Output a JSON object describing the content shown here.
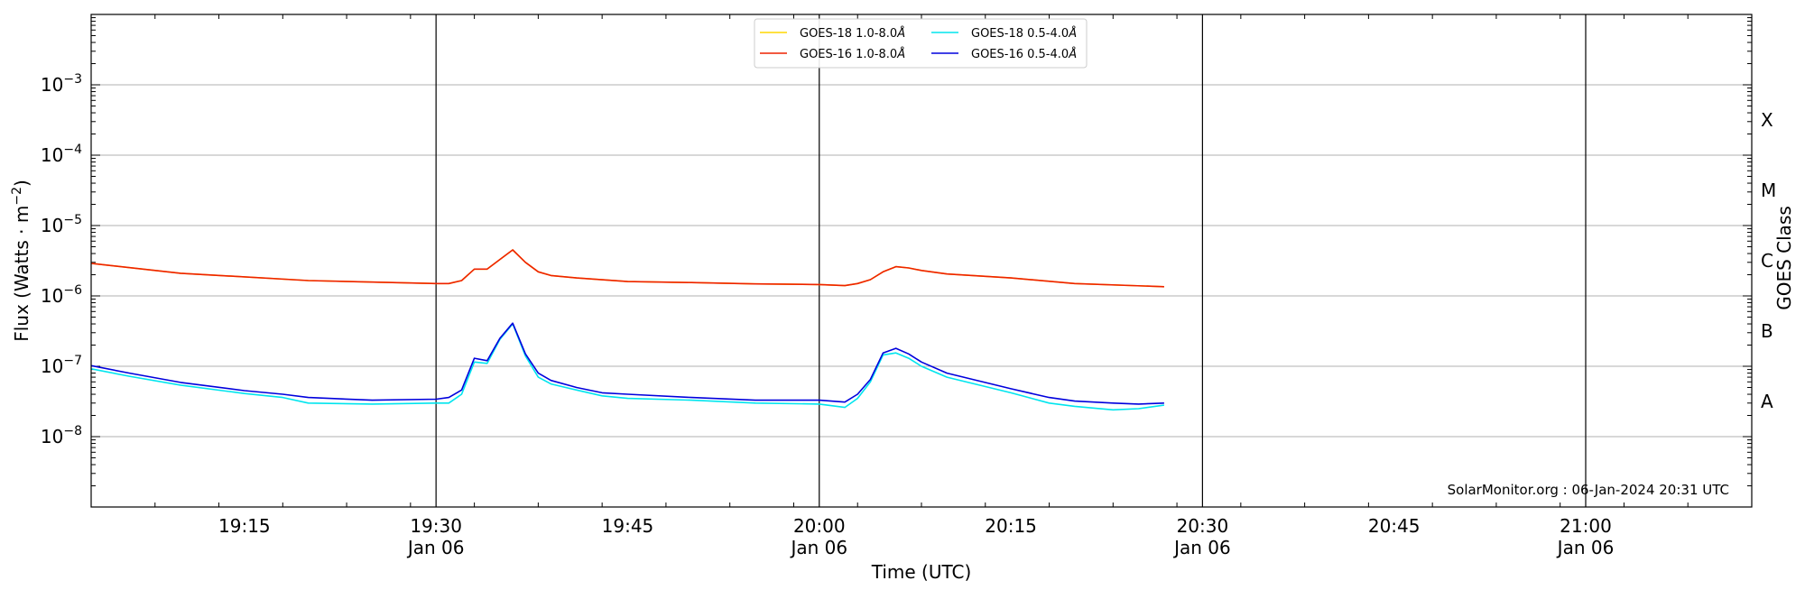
{
  "chart_data": {
    "type": "line",
    "title": "",
    "xlabel": "Time (UTC)",
    "ylabel": "Flux (Watts · m",
    "ylabel_sup": "−2",
    "ylabel_close": ")",
    "right_label": "GOES Class",
    "y_scale": "log",
    "ylim": [
      1e-09,
      0.01
    ],
    "xlim": [
      "2024-01-06T19:03:00",
      "2024-01-06T21:13:00"
    ],
    "grid": "horizontal",
    "legend_position": "top-center",
    "credit": "SolarMonitor.org : 06-Jan-2024 20:31 UTC",
    "y_ticks": [
      {
        "value": 1e-08,
        "base": "10",
        "exp": "−8"
      },
      {
        "value": 1e-07,
        "base": "10",
        "exp": "−7"
      },
      {
        "value": 1e-06,
        "base": "10",
        "exp": "−6"
      },
      {
        "value": 1e-05,
        "base": "10",
        "exp": "−5"
      },
      {
        "value": 0.0001,
        "base": "10",
        "exp": "−4"
      },
      {
        "value": 0.001,
        "base": "10",
        "exp": "−3"
      }
    ],
    "x_ticks": [
      {
        "t": "2024-01-06T19:15:00",
        "label": "19:15",
        "date": ""
      },
      {
        "t": "2024-01-06T19:30:00",
        "label": "19:30",
        "date": "Jan 06"
      },
      {
        "t": "2024-01-06T19:45:00",
        "label": "19:45",
        "date": ""
      },
      {
        "t": "2024-01-06T20:00:00",
        "label": "20:00",
        "date": "Jan 06"
      },
      {
        "t": "2024-01-06T20:15:00",
        "label": "20:15",
        "date": ""
      },
      {
        "t": "2024-01-06T20:30:00",
        "label": "20:30",
        "date": "Jan 06"
      },
      {
        "t": "2024-01-06T20:45:00",
        "label": "20:45",
        "date": ""
      },
      {
        "t": "2024-01-06T21:00:00",
        "label": "21:00",
        "date": "Jan 06"
      }
    ],
    "vlines": [
      "2024-01-06T19:30:00",
      "2024-01-06T20:00:00",
      "2024-01-06T20:30:00",
      "2024-01-06T21:00:00"
    ],
    "goes_classes": [
      {
        "label": "A",
        "value": 3.16e-08
      },
      {
        "label": "B",
        "value": 3.16e-07
      },
      {
        "label": "C",
        "value": 3.16e-06
      },
      {
        "label": "M",
        "value": 3.16e-05
      },
      {
        "label": "X",
        "value": 0.000316
      }
    ],
    "legend": [
      {
        "name": "GOES-18 1.0-8.0",
        "color": "#ffd700"
      },
      {
        "name": "GOES-18 0.5-4.0",
        "color": "#00e5ee"
      },
      {
        "name": "GOES-16 1.0-8.0",
        "color": "#ee2200"
      },
      {
        "name": "GOES-16 0.5-4.0",
        "color": "#0000dd"
      }
    ],
    "legend_unit": "Å",
    "series": [
      {
        "name": "GOES-18 1.0-8.0",
        "color": "#ffd700",
        "x": [
          "2024-01-06T19:03:00",
          "2024-01-06T19:10:00",
          "2024-01-06T19:20:00",
          "2024-01-06T19:30:00",
          "2024-01-06T19:31:00",
          "2024-01-06T19:32:00",
          "2024-01-06T19:33:00",
          "2024-01-06T19:34:00",
          "2024-01-06T19:35:00",
          "2024-01-06T19:36:00",
          "2024-01-06T19:37:00",
          "2024-01-06T19:38:00",
          "2024-01-06T19:39:00",
          "2024-01-06T19:41:00",
          "2024-01-06T19:45:00",
          "2024-01-06T19:50:00",
          "2024-01-06T19:55:00",
          "2024-01-06T20:00:00",
          "2024-01-06T20:02:00",
          "2024-01-06T20:03:00",
          "2024-01-06T20:04:00",
          "2024-01-06T20:05:00",
          "2024-01-06T20:06:00",
          "2024-01-06T20:07:00",
          "2024-01-06T20:08:00",
          "2024-01-06T20:10:00",
          "2024-01-06T20:15:00",
          "2024-01-06T20:20:00",
          "2024-01-06T20:27:00"
        ],
        "y": [
          2.9e-06,
          2.1e-06,
          1.65e-06,
          1.5e-06,
          1.5e-06,
          1.65e-06,
          2.4e-06,
          2.4e-06,
          3.3e-06,
          4.5e-06,
          3e-06,
          2.2e-06,
          1.95e-06,
          1.8e-06,
          1.6e-06,
          1.55e-06,
          1.48e-06,
          1.45e-06,
          1.4e-06,
          1.5e-06,
          1.7e-06,
          2.2e-06,
          2.6e-06,
          2.5e-06,
          2.3e-06,
          2.05e-06,
          1.8e-06,
          1.5e-06,
          1.35e-06
        ]
      },
      {
        "name": "GOES-16 1.0-8.0",
        "color": "#ee2200",
        "x": [
          "2024-01-06T19:03:00",
          "2024-01-06T19:10:00",
          "2024-01-06T19:20:00",
          "2024-01-06T19:30:00",
          "2024-01-06T19:31:00",
          "2024-01-06T19:32:00",
          "2024-01-06T19:33:00",
          "2024-01-06T19:34:00",
          "2024-01-06T19:35:00",
          "2024-01-06T19:36:00",
          "2024-01-06T19:37:00",
          "2024-01-06T19:38:00",
          "2024-01-06T19:39:00",
          "2024-01-06T19:41:00",
          "2024-01-06T19:45:00",
          "2024-01-06T19:50:00",
          "2024-01-06T19:55:00",
          "2024-01-06T20:00:00",
          "2024-01-06T20:02:00",
          "2024-01-06T20:03:00",
          "2024-01-06T20:04:00",
          "2024-01-06T20:05:00",
          "2024-01-06T20:06:00",
          "2024-01-06T20:07:00",
          "2024-01-06T20:08:00",
          "2024-01-06T20:10:00",
          "2024-01-06T20:15:00",
          "2024-01-06T20:20:00",
          "2024-01-06T20:27:00"
        ],
        "y": [
          2.9e-06,
          2.1e-06,
          1.65e-06,
          1.5e-06,
          1.5e-06,
          1.65e-06,
          2.4e-06,
          2.4e-06,
          3.3e-06,
          4.5e-06,
          3e-06,
          2.2e-06,
          1.95e-06,
          1.8e-06,
          1.6e-06,
          1.55e-06,
          1.48e-06,
          1.45e-06,
          1.4e-06,
          1.5e-06,
          1.7e-06,
          2.2e-06,
          2.6e-06,
          2.5e-06,
          2.3e-06,
          2.05e-06,
          1.8e-06,
          1.5e-06,
          1.35e-06
        ]
      },
      {
        "name": "GOES-18 0.5-4.0",
        "color": "#00e5ee",
        "x": [
          "2024-01-06T19:03:00",
          "2024-01-06T19:06:00",
          "2024-01-06T19:10:00",
          "2024-01-06T19:15:00",
          "2024-01-06T19:18:00",
          "2024-01-06T19:20:00",
          "2024-01-06T19:25:00",
          "2024-01-06T19:30:00",
          "2024-01-06T19:31:00",
          "2024-01-06T19:32:00",
          "2024-01-06T19:33:00",
          "2024-01-06T19:34:00",
          "2024-01-06T19:35:00",
          "2024-01-06T19:36:00",
          "2024-01-06T19:37:00",
          "2024-01-06T19:38:00",
          "2024-01-06T19:39:00",
          "2024-01-06T19:41:00",
          "2024-01-06T19:43:00",
          "2024-01-06T19:45:00",
          "2024-01-06T19:50:00",
          "2024-01-06T19:55:00",
          "2024-01-06T20:00:00",
          "2024-01-06T20:02:00",
          "2024-01-06T20:03:00",
          "2024-01-06T20:04:00",
          "2024-01-06T20:05:00",
          "2024-01-06T20:06:00",
          "2024-01-06T20:07:00",
          "2024-01-06T20:08:00",
          "2024-01-06T20:10:00",
          "2024-01-06T20:15:00",
          "2024-01-06T20:18:00",
          "2024-01-06T20:20:00",
          "2024-01-06T20:23:00",
          "2024-01-06T20:25:00",
          "2024-01-06T20:27:00"
        ],
        "y": [
          9.2e-08,
          7.2e-08,
          5.4e-08,
          4.1e-08,
          3.6e-08,
          3e-08,
          2.9e-08,
          3e-08,
          3e-08,
          4e-08,
          1.15e-07,
          1.1e-07,
          2.4e-07,
          4e-07,
          1.4e-07,
          7e-08,
          5.6e-08,
          4.6e-08,
          3.8e-08,
          3.5e-08,
          3.3e-08,
          3e-08,
          2.9e-08,
          2.6e-08,
          3.5e-08,
          6e-08,
          1.45e-07,
          1.55e-07,
          1.3e-07,
          1e-07,
          7e-08,
          4.2e-08,
          3e-08,
          2.7e-08,
          2.4e-08,
          2.5e-08,
          2.8e-08
        ]
      },
      {
        "name": "GOES-16 0.5-4.0",
        "color": "#0000dd",
        "x": [
          "2024-01-06T19:03:00",
          "2024-01-06T19:06:00",
          "2024-01-06T19:10:00",
          "2024-01-06T19:15:00",
          "2024-01-06T19:18:00",
          "2024-01-06T19:20:00",
          "2024-01-06T19:25:00",
          "2024-01-06T19:30:00",
          "2024-01-06T19:31:00",
          "2024-01-06T19:32:00",
          "2024-01-06T19:33:00",
          "2024-01-06T19:34:00",
          "2024-01-06T19:35:00",
          "2024-01-06T19:36:00",
          "2024-01-06T19:37:00",
          "2024-01-06T19:38:00",
          "2024-01-06T19:39:00",
          "2024-01-06T19:41:00",
          "2024-01-06T19:43:00",
          "2024-01-06T19:45:00",
          "2024-01-06T19:50:00",
          "2024-01-06T19:55:00",
          "2024-01-06T20:00:00",
          "2024-01-06T20:02:00",
          "2024-01-06T20:03:00",
          "2024-01-06T20:04:00",
          "2024-01-06T20:05:00",
          "2024-01-06T20:06:00",
          "2024-01-06T20:07:00",
          "2024-01-06T20:08:00",
          "2024-01-06T20:10:00",
          "2024-01-06T20:15:00",
          "2024-01-06T20:18:00",
          "2024-01-06T20:20:00",
          "2024-01-06T20:23:00",
          "2024-01-06T20:25:00",
          "2024-01-06T20:27:00"
        ],
        "y": [
          1.02e-07,
          8e-08,
          5.9e-08,
          4.5e-08,
          4e-08,
          3.6e-08,
          3.3e-08,
          3.4e-08,
          3.6e-08,
          4.6e-08,
          1.3e-07,
          1.2e-07,
          2.5e-07,
          4.1e-07,
          1.5e-07,
          8e-08,
          6.3e-08,
          5e-08,
          4.2e-08,
          4e-08,
          3.6e-08,
          3.3e-08,
          3.3e-08,
          3.1e-08,
          4e-08,
          6.5e-08,
          1.55e-07,
          1.8e-07,
          1.5e-07,
          1.15e-07,
          8e-08,
          4.8e-08,
          3.6e-08,
          3.2e-08,
          3e-08,
          2.9e-08,
          3e-08
        ]
      }
    ]
  }
}
